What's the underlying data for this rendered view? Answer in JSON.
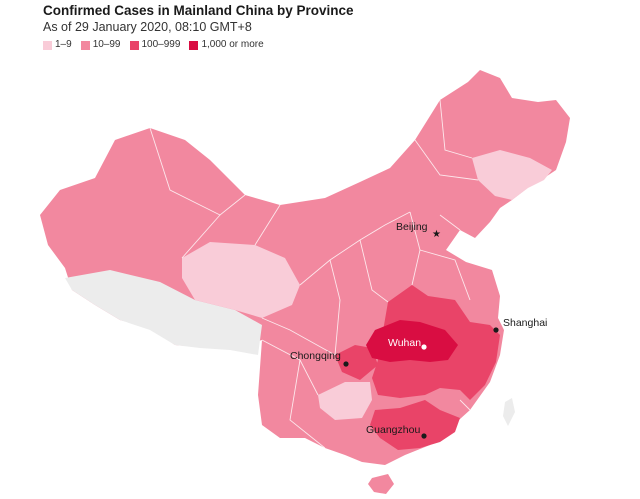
{
  "header": {
    "title": "Confirmed Cases in Mainland China by Province",
    "subtitle": "As of 29 January 2020, 08:10 GMT+8"
  },
  "legend": [
    {
      "label": "1–9",
      "color": "#f9ccd8"
    },
    {
      "label": "10–99",
      "color": "#f2889f"
    },
    {
      "label": "100–999",
      "color": "#e94468"
    },
    {
      "label": "1,000 or more",
      "color": "#d90d42"
    }
  ],
  "colors": {
    "no_data": "#ececec",
    "band_1_9": "#f9ccd8",
    "band_10_99": "#f2889f",
    "band_100_999": "#e94468",
    "band_1000_plus": "#d90d42"
  },
  "cities": [
    {
      "name": "Beijing",
      "marker": "star-icon"
    },
    {
      "name": "Shanghai",
      "marker": "dot-icon"
    },
    {
      "name": "Wuhan",
      "marker": "dot-icon"
    },
    {
      "name": "Chongqing",
      "marker": "dot-icon"
    },
    {
      "name": "Guangzhou",
      "marker": "dot-icon"
    }
  ],
  "map_data": {
    "type": "choropleth",
    "region": "Mainland China",
    "legend_placement": "top-left",
    "regions": [
      {
        "region": "Hubei",
        "band": "1,000 or more"
      },
      {
        "region": "Henan",
        "band": "100–999"
      },
      {
        "region": "Anhui",
        "band": "100–999"
      },
      {
        "region": "Hunan",
        "band": "100–999"
      },
      {
        "region": "Jiangxi",
        "band": "100–999"
      },
      {
        "region": "Zhejiang",
        "band": "100–999"
      },
      {
        "region": "Guangdong",
        "band": "100–999"
      },
      {
        "region": "Chongqing",
        "band": "100–999"
      },
      {
        "region": "Heilongjiang",
        "band": "10–99"
      },
      {
        "region": "Inner Mongolia",
        "band": "10–99"
      },
      {
        "region": "Xinjiang",
        "band": "10–99"
      },
      {
        "region": "Gansu",
        "band": "10–99"
      },
      {
        "region": "Sichuan",
        "band": "10–99"
      },
      {
        "region": "Yunnan",
        "band": "10–99"
      },
      {
        "region": "Guangxi",
        "band": "10–99"
      },
      {
        "region": "Fujian",
        "band": "10–99"
      },
      {
        "region": "Jiangsu",
        "band": "10–99"
      },
      {
        "region": "Shandong",
        "band": "10–99"
      },
      {
        "region": "Shaanxi",
        "band": "10–99"
      },
      {
        "region": "Shanxi",
        "band": "10–99"
      },
      {
        "region": "Hebei",
        "band": "10–99"
      },
      {
        "region": "Beijing",
        "band": "10–99"
      },
      {
        "region": "Tianjin",
        "band": "10–99"
      },
      {
        "region": "Liaoning",
        "band": "10–99"
      },
      {
        "region": "Shanghai",
        "band": "10–99"
      },
      {
        "region": "Hainan",
        "band": "10–99"
      },
      {
        "region": "Ningxia",
        "band": "10–99"
      },
      {
        "region": "Jilin",
        "band": "1–9"
      },
      {
        "region": "Qinghai",
        "band": "1–9"
      },
      {
        "region": "Guizhou",
        "band": "1–9"
      },
      {
        "region": "Tibet",
        "band": "no data"
      }
    ]
  }
}
